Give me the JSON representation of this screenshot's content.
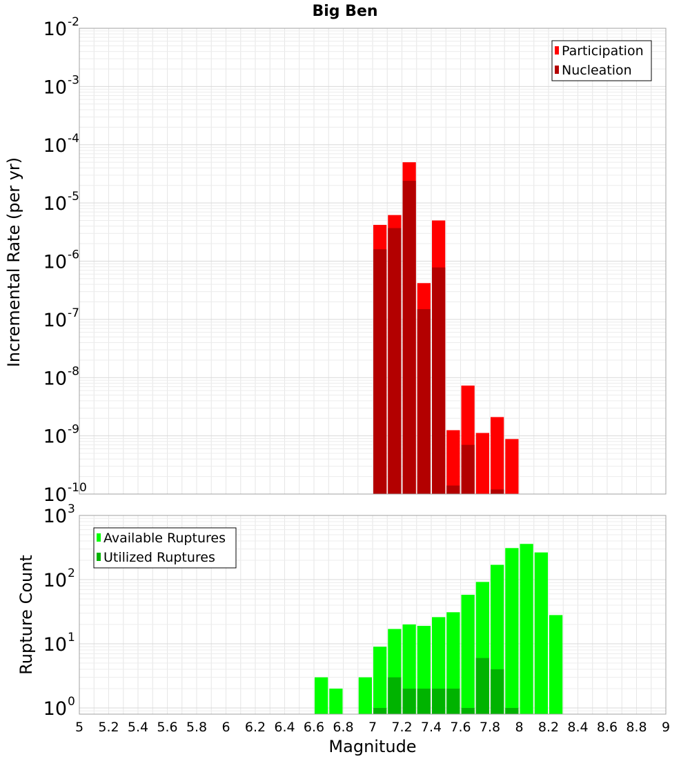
{
  "chart_data": [
    {
      "type": "bar",
      "title": "Big Ben",
      "xlabel": "",
      "ylabel": "Incremental Rate (per yr)",
      "y_scale": "log",
      "ylim": [
        1e-10,
        0.01
      ],
      "xlim": [
        5,
        9
      ],
      "grid": true,
      "legend_position": "top-right",
      "y_ticks": [
        {
          "base": "10",
          "exp": "-2",
          "value": 0.01
        },
        {
          "base": "10",
          "exp": "-3",
          "value": 0.001
        },
        {
          "base": "10",
          "exp": "-4",
          "value": 0.0001
        },
        {
          "base": "10",
          "exp": "-5",
          "value": 1e-05
        },
        {
          "base": "10",
          "exp": "-6",
          "value": 1e-06
        },
        {
          "base": "10",
          "exp": "-7",
          "value": 1e-07
        },
        {
          "base": "10",
          "exp": "-8",
          "value": 1e-08
        },
        {
          "base": "10",
          "exp": "-9",
          "value": 1e-09
        },
        {
          "base": "10",
          "exp": "-10",
          "value": 1e-10
        }
      ],
      "bar_width": 0.1,
      "series": [
        {
          "name": "Participation",
          "color": "#ff0000",
          "points": [
            {
              "x": 7.05,
              "y": 4.2e-06
            },
            {
              "x": 7.15,
              "y": 6.2e-06
            },
            {
              "x": 7.25,
              "y": 5e-05
            },
            {
              "x": 7.35,
              "y": 4.2e-07
            },
            {
              "x": 7.45,
              "y": 5e-06
            },
            {
              "x": 7.55,
              "y": 1.25e-09
            },
            {
              "x": 7.65,
              "y": 7.3e-09
            },
            {
              "x": 7.75,
              "y": 1.12e-09
            },
            {
              "x": 7.85,
              "y": 2.1e-09
            },
            {
              "x": 7.95,
              "y": 8.8e-10
            }
          ]
        },
        {
          "name": "Nucleation",
          "color": "#b30000",
          "points": [
            {
              "x": 7.05,
              "y": 1.6e-06
            },
            {
              "x": 7.15,
              "y": 3.7e-06
            },
            {
              "x": 7.25,
              "y": 2.4e-05
            },
            {
              "x": 7.35,
              "y": 1.5e-07
            },
            {
              "x": 7.45,
              "y": 7.8e-07
            },
            {
              "x": 7.55,
              "y": 1.4e-10
            },
            {
              "x": 7.65,
              "y": 7e-10
            },
            {
              "x": 7.85,
              "y": 1.2e-10
            }
          ]
        }
      ]
    },
    {
      "type": "bar",
      "title": "",
      "xlabel": "Magnitude",
      "ylabel": "Rupture Count",
      "y_scale": "log",
      "ylim": [
        0.8,
        1000
      ],
      "xlim": [
        5,
        9
      ],
      "grid": true,
      "legend_position": "top-left",
      "x_ticks": [
        "5",
        "5.2",
        "5.4",
        "5.6",
        "5.8",
        "6",
        "6.2",
        "6.4",
        "6.6",
        "6.8",
        "7",
        "7.2",
        "7.4",
        "7.6",
        "7.8",
        "8",
        "8.2",
        "8.4",
        "8.6",
        "8.8",
        "9"
      ],
      "y_ticks": [
        {
          "base": "10",
          "exp": "3",
          "value": 1000
        },
        {
          "base": "10",
          "exp": "2",
          "value": 100
        },
        {
          "base": "10",
          "exp": "1",
          "value": 10
        },
        {
          "base": "10",
          "exp": "0",
          "value": 1
        }
      ],
      "bar_width": 0.1,
      "series": [
        {
          "name": "Available Ruptures",
          "color": "#00ff00",
          "points": [
            {
              "x": 6.65,
              "y": 3
            },
            {
              "x": 6.75,
              "y": 2
            },
            {
              "x": 6.95,
              "y": 3
            },
            {
              "x": 7.05,
              "y": 9
            },
            {
              "x": 7.15,
              "y": 17
            },
            {
              "x": 7.25,
              "y": 20
            },
            {
              "x": 7.35,
              "y": 19
            },
            {
              "x": 7.45,
              "y": 26
            },
            {
              "x": 7.55,
              "y": 31
            },
            {
              "x": 7.65,
              "y": 58
            },
            {
              "x": 7.75,
              "y": 92
            },
            {
              "x": 7.85,
              "y": 170
            },
            {
              "x": 7.95,
              "y": 310
            },
            {
              "x": 8.05,
              "y": 360
            },
            {
              "x": 8.15,
              "y": 265
            },
            {
              "x": 8.25,
              "y": 28
            }
          ]
        },
        {
          "name": "Utilized Ruptures",
          "color": "#00b300",
          "points": [
            {
              "x": 7.05,
              "y": 1
            },
            {
              "x": 7.15,
              "y": 3
            },
            {
              "x": 7.25,
              "y": 2
            },
            {
              "x": 7.35,
              "y": 2
            },
            {
              "x": 7.45,
              "y": 2
            },
            {
              "x": 7.55,
              "y": 2
            },
            {
              "x": 7.65,
              "y": 1
            },
            {
              "x": 7.75,
              "y": 6
            },
            {
              "x": 7.85,
              "y": 4
            },
            {
              "x": 7.95,
              "y": 1
            }
          ]
        }
      ]
    }
  ]
}
